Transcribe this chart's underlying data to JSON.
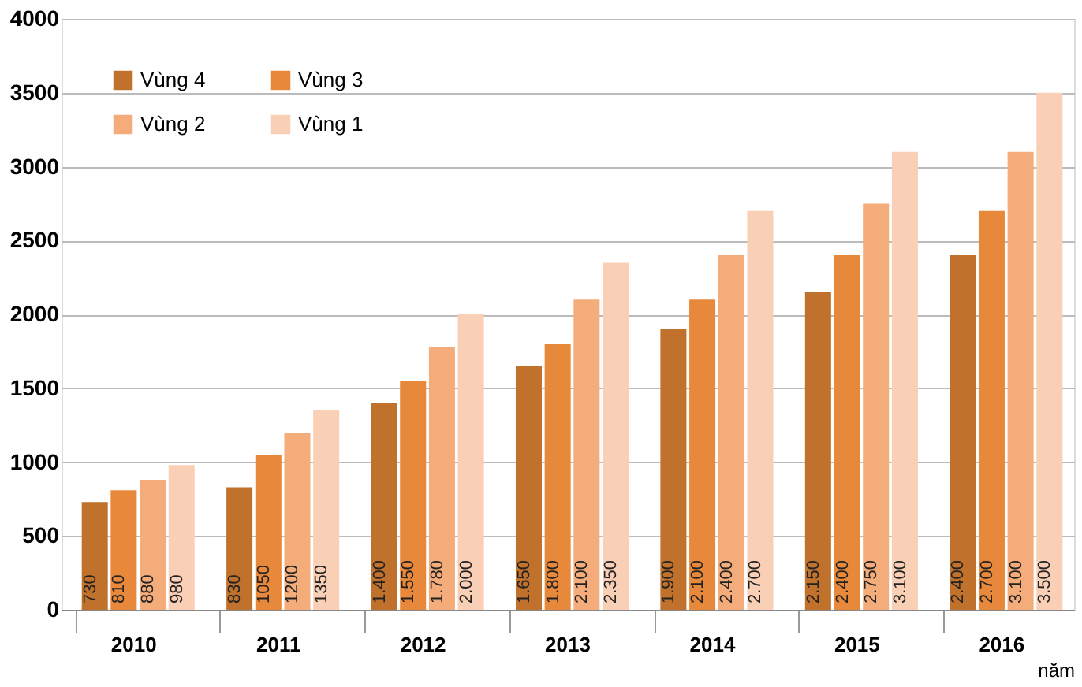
{
  "chart_data": {
    "type": "bar",
    "xlabel": "năm",
    "categories": [
      "2010",
      "2011",
      "2012",
      "2013",
      "2014",
      "2015",
      "2016"
    ],
    "series": [
      {
        "name": "Vùng 4",
        "color": "#c0712c",
        "values": [
          730,
          830,
          1400,
          1650,
          1900,
          2150,
          2400
        ],
        "value_labels": [
          "730",
          "830",
          "1.400",
          "1.650",
          "1.900",
          "2.150",
          "2.400"
        ]
      },
      {
        "name": "Vùng 3",
        "color": "#e8883a",
        "values": [
          810,
          1050,
          1550,
          1800,
          2100,
          2400,
          2700
        ],
        "value_labels": [
          "810",
          "1050",
          "1.550",
          "1.800",
          "2.100",
          "2.400",
          "2.700"
        ]
      },
      {
        "name": "Vùng 2",
        "color": "#f4ad7a",
        "values": [
          880,
          1200,
          1780,
          2100,
          2400,
          2750,
          3100
        ],
        "value_labels": [
          "880",
          "1200",
          "1.780",
          "2.100",
          "2.400",
          "2.750",
          "3.100"
        ]
      },
      {
        "name": "Vùng 1",
        "color": "#f9cfb5",
        "values": [
          980,
          1350,
          2000,
          2350,
          2700,
          3100,
          3500
        ],
        "value_labels": [
          "980",
          "1350",
          "2.000",
          "2.350",
          "2.700",
          "3.100",
          "3.500"
        ]
      }
    ],
    "ylim": [
      0,
      4000
    ],
    "yticks": [
      0,
      500,
      1000,
      1500,
      2000,
      2500,
      3000,
      3500,
      4000
    ],
    "grid": "y",
    "legend": "top left"
  }
}
